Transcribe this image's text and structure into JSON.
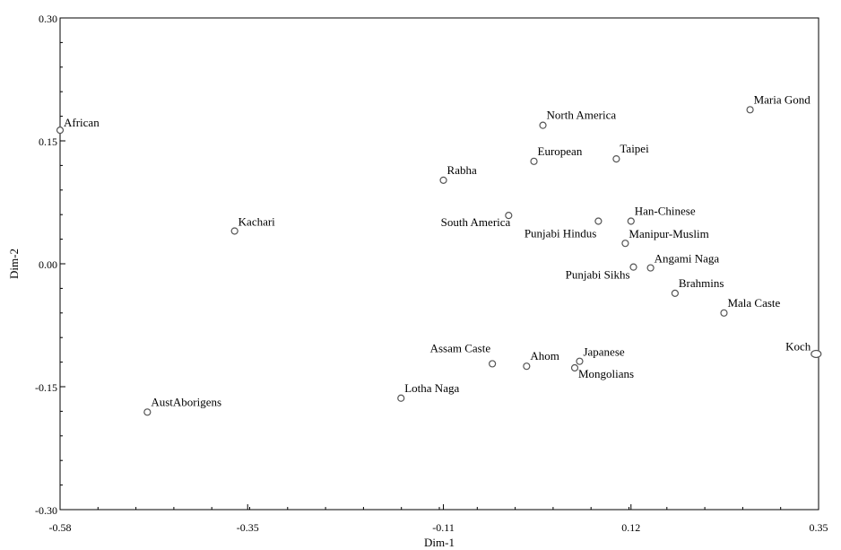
{
  "chart_data": {
    "type": "scatter",
    "xlabel": "Dim-1",
    "ylabel": "Dim-2",
    "xlim": [
      -0.58,
      0.35
    ],
    "ylim": [
      -0.3,
      0.3
    ],
    "x_ticks": [
      -0.58,
      -0.35,
      -0.11,
      0.12,
      0.35
    ],
    "x_tick_labels": [
      "-0.58",
      "-0.35",
      "-0.11",
      "0.12",
      "0.35"
    ],
    "y_ticks": [
      0.3,
      0.15,
      0.0,
      -0.15,
      -0.3
    ],
    "y_tick_labels": [
      "0.30",
      "0.15",
      "0.00",
      "-0.15",
      "-0.30"
    ],
    "grid": false,
    "marker": "open-circle",
    "points": [
      {
        "label": "African",
        "x": -0.58,
        "y": 0.163
      },
      {
        "label": "Kachari",
        "x": -0.366,
        "y": 0.04
      },
      {
        "label": "AustAborigens",
        "x": -0.473,
        "y": -0.181
      },
      {
        "label": "Rabha",
        "x": -0.11,
        "y": 0.102
      },
      {
        "label": "North America",
        "x": 0.012,
        "y": 0.169
      },
      {
        "label": "European",
        "x": 0.001,
        "y": 0.125
      },
      {
        "label": "Taipei",
        "x": 0.102,
        "y": 0.128
      },
      {
        "label": "South America",
        "x": -0.03,
        "y": 0.059
      },
      {
        "label": "Punjabi Hindus",
        "x": 0.08,
        "y": 0.052
      },
      {
        "label": "Han-Chinese",
        "x": 0.12,
        "y": 0.052
      },
      {
        "label": "Manipur-Muslim",
        "x": 0.113,
        "y": 0.025
      },
      {
        "label": "Maria Gond",
        "x": 0.266,
        "y": 0.188
      },
      {
        "label": "Angami Naga",
        "x": 0.144,
        "y": -0.005
      },
      {
        "label": "Punjabi Sikhs",
        "x": 0.123,
        "y": -0.004
      },
      {
        "label": "Brahmins",
        "x": 0.174,
        "y": -0.036
      },
      {
        "label": "Mala Caste",
        "x": 0.234,
        "y": -0.06
      },
      {
        "label": "Koch",
        "x": 0.347,
        "y": -0.11
      },
      {
        "label": "Assam Caste",
        "x": -0.05,
        "y": -0.122
      },
      {
        "label": "Ahom",
        "x": -0.008,
        "y": -0.125
      },
      {
        "label": "Japanese",
        "x": 0.057,
        "y": -0.119
      },
      {
        "label": "Mongolians",
        "x": 0.051,
        "y": -0.127
      },
      {
        "label": "Lotha Naga",
        "x": -0.162,
        "y": -0.164
      }
    ]
  }
}
